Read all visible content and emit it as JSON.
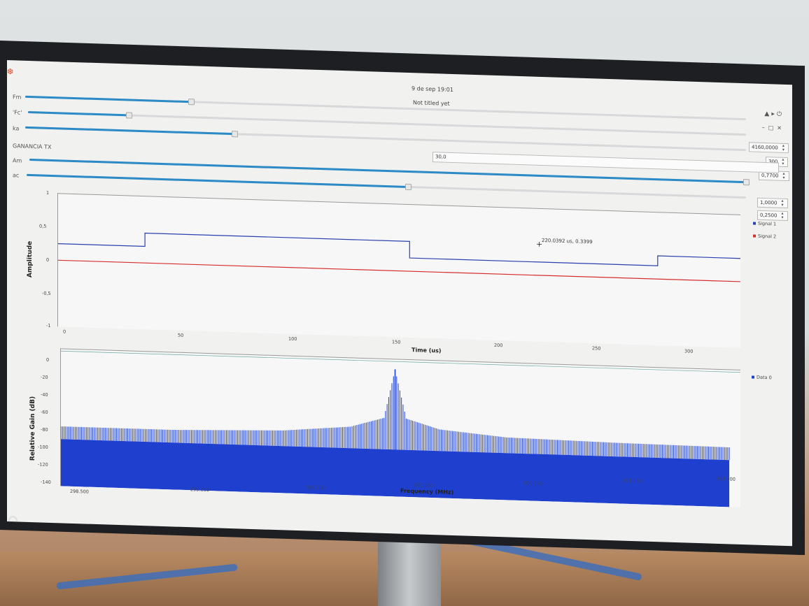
{
  "system": {
    "datetime": "9 de sep  19:01",
    "tray_icons": [
      "network-icon",
      "volume-icon",
      "power-icon"
    ]
  },
  "window": {
    "title": "Not titled yet",
    "controls": [
      "minimize-icon",
      "maximize-icon",
      "close-icon"
    ]
  },
  "controls": {
    "fm": {
      "label": "Fm",
      "value": "4160,0000",
      "fraction": 0.23
    },
    "fc": {
      "label": "'Fc'",
      "value": "300",
      "fraction": 0.14
    },
    "ka": {
      "label": "ka",
      "value": "0,7700",
      "fraction": 0.29
    },
    "ganancia_tx": {
      "label": "GANANCIA TX",
      "value": "30,0"
    },
    "am": {
      "label": "Am",
      "value": "1,0000",
      "fraction": 1.0
    },
    "ac": {
      "label": "ac",
      "value": "0,2500",
      "fraction": 0.53
    }
  },
  "time_plot": {
    "ylabel": "Amplitude",
    "xlabel": "Time (us)",
    "yticks": [
      "1",
      "0,5",
      "0",
      "-0,5",
      "-1"
    ],
    "xticks": [
      "0",
      "50",
      "100",
      "150",
      "200",
      "250",
      "300"
    ],
    "legend": [
      {
        "name": "Signal 1",
        "color": "#2a3fb0"
      },
      {
        "name": "Signal 2",
        "color": "#d62d2d"
      }
    ],
    "cursor_readout": "220.0392 us, 0.3399"
  },
  "freq_plot": {
    "ylabel": "Relative Gain (dB)",
    "xlabel": "Frequency (MHz)",
    "yticks": [
      "0",
      "-20",
      "-40",
      "-60",
      "-80",
      "-100",
      "-120",
      "-140"
    ],
    "xticks": [
      "298.500",
      "299.000",
      "299.500",
      "300.000",
      "300.500",
      "301.000",
      "301.500"
    ],
    "legend": [
      {
        "name": "Data 0",
        "color": "#1f3fcf"
      }
    ]
  },
  "chart_data": [
    {
      "type": "line",
      "xlabel": "Time (us)",
      "ylabel": "Amplitude",
      "xlim": [
        0,
        330
      ],
      "ylim": [
        -1,
        1
      ],
      "series": [
        {
          "name": "Signal 1",
          "color": "#2a3fb0",
          "x": [
            0,
            42,
            42,
            170,
            170,
            290,
            290,
            330
          ],
          "y": [
            0.25,
            0.25,
            0.45,
            0.45,
            0.2,
            0.2,
            0.35,
            0.35
          ]
        },
        {
          "name": "Signal 2",
          "color": "#d62d2d",
          "x": [
            0,
            330
          ],
          "y": [
            0,
            0
          ]
        }
      ]
    },
    {
      "type": "area",
      "xlabel": "Frequency (MHz)",
      "ylabel": "Relative Gain (dB)",
      "xlim": [
        298.5,
        301.55
      ],
      "ylim": [
        -140,
        0
      ],
      "series": [
        {
          "name": "Data 0",
          "color": "#1f3fcf",
          "floor_db": -140,
          "x": [
            298.5,
            299.0,
            299.5,
            299.8,
            299.95,
            300.0,
            300.05,
            300.2,
            300.5,
            301.0,
            301.5
          ],
          "y": [
            -79,
            -79,
            -76,
            -70,
            -60,
            -10,
            -60,
            -70,
            -76,
            -78,
            -79
          ]
        }
      ]
    }
  ]
}
